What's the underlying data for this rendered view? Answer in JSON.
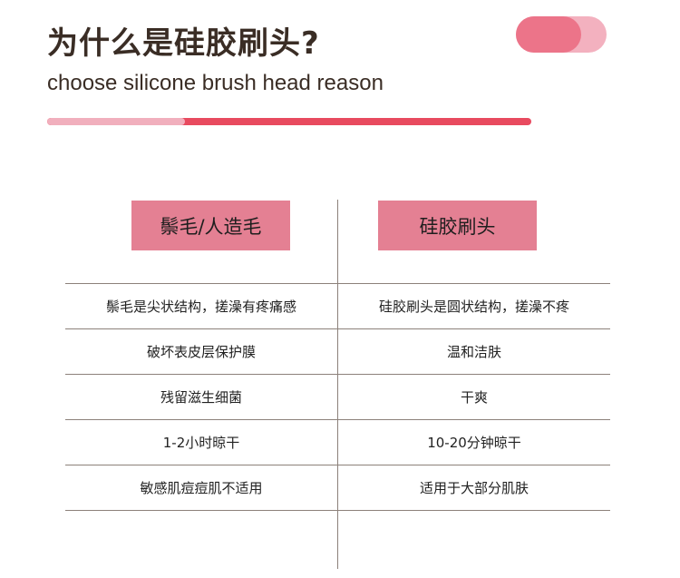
{
  "header": {
    "title": "为什么是硅胶刷头?",
    "subtitle": "choose silicone brush head reason",
    "progress_percent": 28.5,
    "colors": {
      "accent": "#e84a5f",
      "accent_light": "#f1afbd",
      "header_box": "#e48093",
      "pill_dark": "#ec7489",
      "pill_light": "#f3b1bf"
    }
  },
  "comparison": {
    "columns": [
      "鬃毛/人造毛",
      "硅胶刷头"
    ],
    "rows": [
      [
        "鬃毛是尖状结构，搓澡有疼痛感",
        "硅胶刷头是圆状结构，搓澡不疼"
      ],
      [
        "破坏表皮层保护膜",
        "温和洁肤"
      ],
      [
        "残留滋生细菌",
        "干爽"
      ],
      [
        "1-2小时晾干",
        "10-20分钟晾干"
      ],
      [
        "敏感肌痘痘肌不适用",
        "适用于大部分肌肤"
      ]
    ]
  }
}
